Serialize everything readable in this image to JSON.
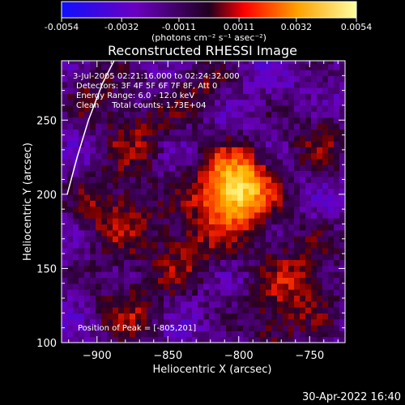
{
  "colorbar": {
    "ticks": [
      "-0.0054",
      "-0.0032",
      "-0.0011",
      "0.0011",
      "0.0032",
      "0.0054"
    ],
    "tick_values": [
      -0.0054,
      -0.0032,
      -0.0011,
      0.0011,
      0.0032,
      0.0054
    ],
    "units_label": "(photons cm⁻² s⁻¹ asec⁻²)",
    "colors": [
      "#1010ff",
      "#6a00c0",
      "#300030",
      "#ff0000",
      "#ffb000",
      "#ffffa0"
    ]
  },
  "chart_data": {
    "type": "heatmap",
    "title": "Reconstructed RHESSI Image",
    "xlabel": "Heliocentric X (arcsec)",
    "ylabel": "Heliocentric Y (arcsec)",
    "xlim": [
      -925,
      -725
    ],
    "ylim": [
      100,
      290
    ],
    "xticks": [
      -900,
      -850,
      -800,
      -750
    ],
    "xtick_labels": [
      "−900",
      "−850",
      "−800",
      "−750"
    ],
    "yticks": [
      100,
      150,
      200,
      250
    ],
    "ytick_labels": [
      "100",
      "150",
      "200",
      "250"
    ],
    "annotations": [
      "3-Jul-2005 02:21:16.000 to 02:24:32.000",
      "Detectors: 3F 4F 5F 6F 7F 8F, Att 0",
      "Energy Range: 6.0 - 12.0 keV",
      "Clean     Total counts: 1.73E+04"
    ],
    "peak_label": "Position of Peak = [-805,201]",
    "peak": [
      -805,
      201
    ],
    "blobs": [
      {
        "x": -805,
        "y": 201,
        "amp": 1.6,
        "r": 18
      },
      {
        "x": -890,
        "y": 185,
        "amp": 0.55,
        "r": 20
      },
      {
        "x": -875,
        "y": 240,
        "amp": 0.45,
        "r": 18
      },
      {
        "x": -840,
        "y": 160,
        "amp": 0.5,
        "r": 18
      },
      {
        "x": -760,
        "y": 140,
        "amp": 0.55,
        "r": 22
      },
      {
        "x": -745,
        "y": 235,
        "amp": 0.4,
        "r": 16
      },
      {
        "x": -830,
        "y": 270,
        "amp": 0.4,
        "r": 14
      },
      {
        "x": -880,
        "y": 120,
        "amp": 0.45,
        "r": 18
      },
      {
        "x": -780,
        "y": 110,
        "amp": 0.35,
        "r": 14
      },
      {
        "x": -905,
        "y": 270,
        "amp": 0.35,
        "r": 14
      }
    ],
    "limb_curve": [
      [
        -921,
        200
      ],
      [
        -914,
        225
      ],
      [
        -906,
        250
      ],
      [
        -896,
        275
      ],
      [
        -888,
        290
      ]
    ]
  },
  "footer": {
    "date": "30-Apr-2022 16:40"
  }
}
